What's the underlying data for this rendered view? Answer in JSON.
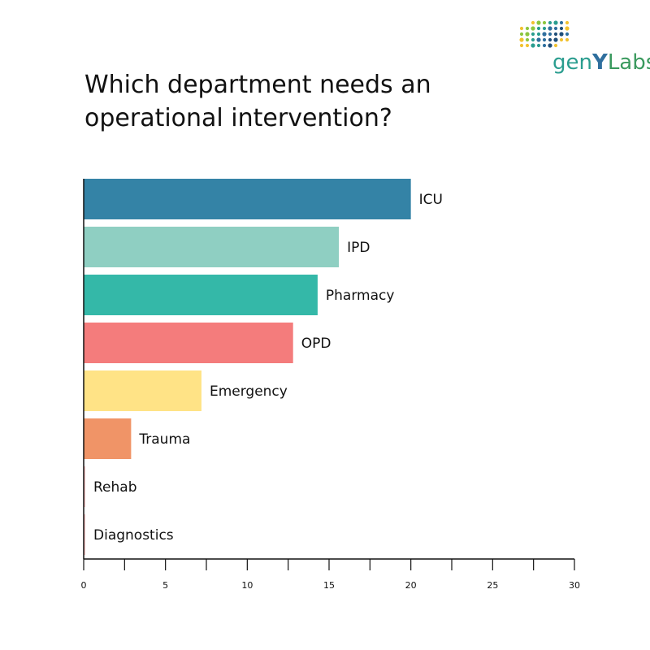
{
  "title": "Which department needs an operational intervention?",
  "logo": {
    "text_gen": "gen",
    "text_y": "Y",
    "text_labs": "Labs",
    "dot_colors": [
      "#f2c230",
      "#8cc63f",
      "#2a9d8f",
      "#2f6f9e",
      "#1f4e79"
    ]
  },
  "chart_data": {
    "type": "bar",
    "orientation": "horizontal",
    "categories": [
      "ICU",
      "IPD",
      "Pharmacy",
      "OPD",
      "Emergency",
      "Trauma",
      "Rehab",
      "Diagnostics"
    ],
    "values": [
      20,
      15.6,
      14.3,
      12.8,
      7.2,
      2.9,
      0.1,
      0.1
    ],
    "colors": [
      "#3483a6",
      "#8fcfc2",
      "#34b8a8",
      "#f47c7c",
      "#ffe386",
      "#f09467",
      "#f9c4c4",
      "#f9c4c4"
    ],
    "xlim": [
      0,
      30
    ],
    "xticks": [
      0,
      5,
      10,
      15,
      20,
      25,
      30
    ],
    "xlabel": "",
    "ylabel": "",
    "grid": false,
    "labels_position": "end-of-bar"
  }
}
